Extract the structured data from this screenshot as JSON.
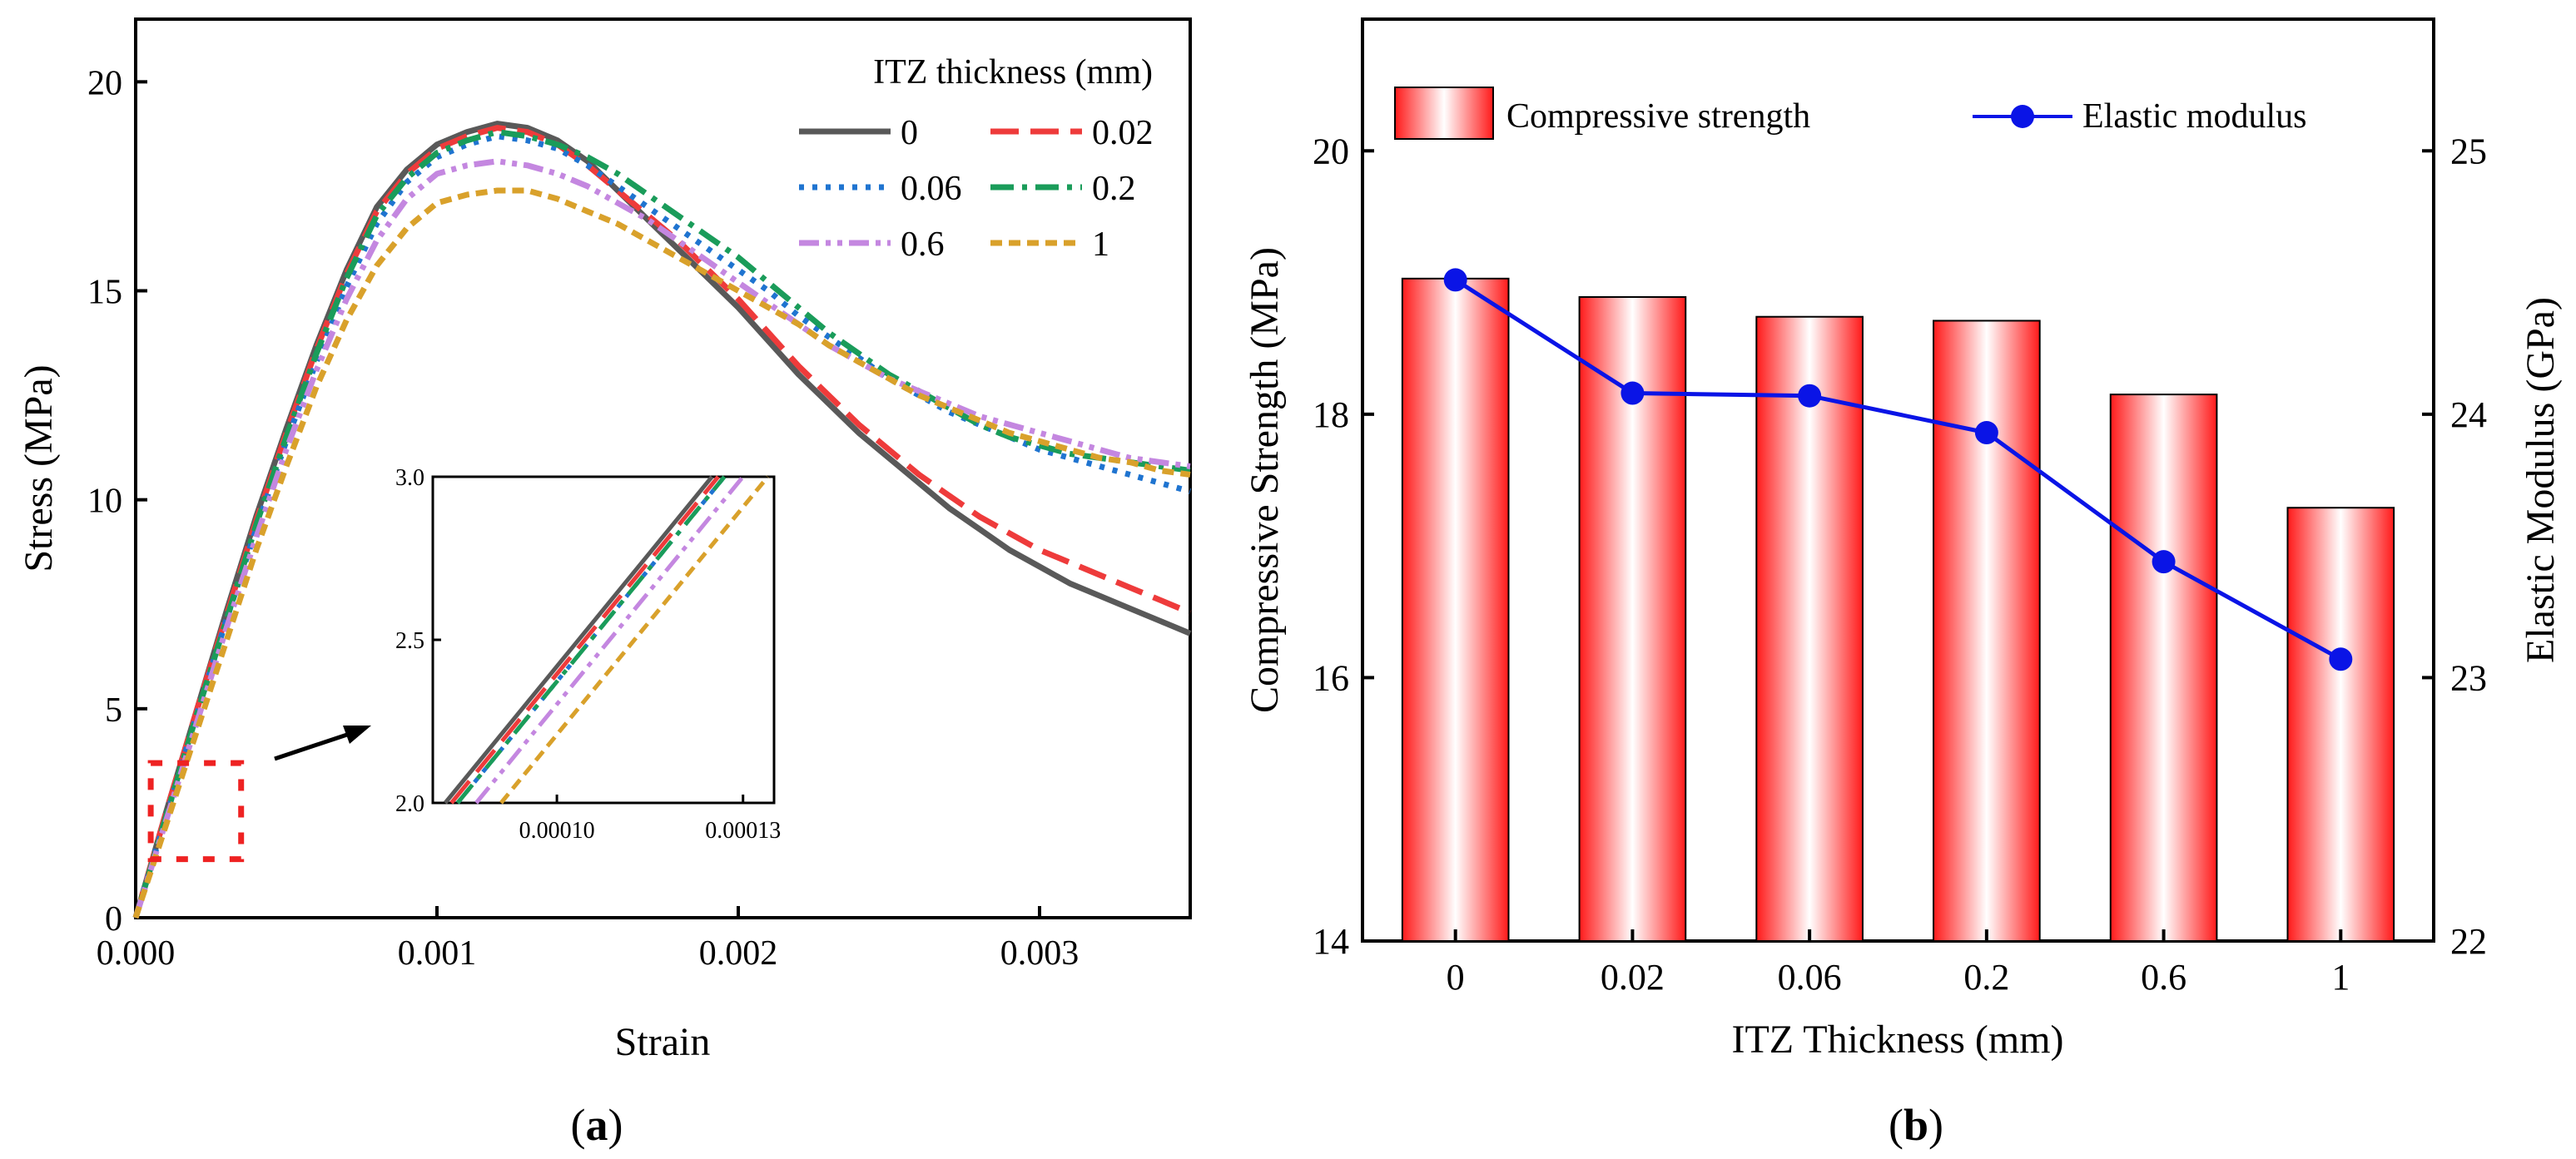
{
  "chart_data": [
    {
      "id": "a",
      "type": "line",
      "panel_label": {
        "open": "(",
        "letter": "a",
        "close": ")"
      },
      "title": "",
      "xlabel": "Strain",
      "ylabel": "Stress (MPa)",
      "xlim": [
        0,
        0.0035
      ],
      "ylim": [
        0,
        21.5
      ],
      "xticks": [
        0,
        0.001,
        0.002,
        0.003
      ],
      "xtick_labels": [
        "0.000",
        "0.001",
        "0.002",
        "0.003"
      ],
      "yticks": [
        0,
        5,
        10,
        15,
        20
      ],
      "ytick_labels": [
        "0",
        "5",
        "10",
        "15",
        "20"
      ],
      "legend_title": "ITZ thickness (mm)",
      "legend_position": "top-right",
      "series": [
        {
          "name": "0",
          "color": "#595959",
          "dash": "solid",
          "x": [
            0,
            0.0001,
            0.0002,
            0.0003,
            0.0004,
            0.0005,
            0.0006,
            0.0007,
            0.0008,
            0.0009,
            0.001,
            0.0011,
            0.0012,
            0.0013,
            0.0014,
            0.0015,
            0.0016,
            0.0017,
            0.0018,
            0.0019,
            0.002,
            0.0021,
            0.0022,
            0.0023,
            0.0024,
            0.0025,
            0.0026,
            0.0027,
            0.0028,
            0.0029,
            0.003,
            0.0031,
            0.0032,
            0.0033,
            0.0034,
            0.0035
          ],
          "y": [
            0,
            2.5,
            4.9,
            7.3,
            9.6,
            11.7,
            13.7,
            15.5,
            17.0,
            17.9,
            18.5,
            18.8,
            19.0,
            18.9,
            18.6,
            18.1,
            17.4,
            16.7,
            16.0,
            15.3,
            14.6,
            13.8,
            13.0,
            12.3,
            11.6,
            11.0,
            10.4,
            9.8,
            9.3,
            8.8,
            8.4,
            8.0,
            7.7,
            7.4,
            7.1,
            6.8
          ]
        },
        {
          "name": "0.02",
          "color": "#ee3b3b",
          "dash": "long-dash",
          "x": [
            0,
            0.0001,
            0.0002,
            0.0003,
            0.0004,
            0.0005,
            0.0006,
            0.0007,
            0.0008,
            0.0009,
            0.001,
            0.0011,
            0.0012,
            0.0013,
            0.0014,
            0.0015,
            0.0016,
            0.0017,
            0.0018,
            0.0019,
            0.002,
            0.0021,
            0.0022,
            0.0023,
            0.0024,
            0.0025,
            0.0026,
            0.0027,
            0.0028,
            0.0029,
            0.003,
            0.0031,
            0.0032,
            0.0033,
            0.0034,
            0.0035
          ],
          "y": [
            0,
            2.5,
            4.9,
            7.2,
            9.5,
            11.6,
            13.6,
            15.4,
            16.9,
            17.8,
            18.4,
            18.7,
            18.9,
            18.8,
            18.5,
            18.0,
            17.4,
            16.8,
            16.2,
            15.5,
            14.8,
            14.0,
            13.2,
            12.5,
            11.8,
            11.2,
            10.6,
            10.1,
            9.6,
            9.2,
            8.8,
            8.5,
            8.2,
            7.9,
            7.6,
            7.3
          ]
        },
        {
          "name": "0.06",
          "color": "#1f74d0",
          "dash": "dot",
          "x": [
            0,
            0.0001,
            0.0002,
            0.0003,
            0.0004,
            0.0005,
            0.0006,
            0.0007,
            0.0008,
            0.0009,
            0.001,
            0.0011,
            0.0012,
            0.0013,
            0.0014,
            0.0015,
            0.0016,
            0.0017,
            0.0018,
            0.0019,
            0.002,
            0.0021,
            0.0022,
            0.0023,
            0.0024,
            0.0025,
            0.0026,
            0.0027,
            0.0028,
            0.0029,
            0.003,
            0.0031,
            0.0032,
            0.0033,
            0.0034,
            0.0035
          ],
          "y": [
            0,
            2.4,
            4.8,
            7.1,
            9.3,
            11.4,
            13.3,
            15.1,
            16.6,
            17.6,
            18.2,
            18.5,
            18.7,
            18.6,
            18.4,
            18.0,
            17.5,
            17.0,
            16.5,
            16.0,
            15.5,
            15.0,
            14.4,
            13.9,
            13.4,
            12.9,
            12.5,
            12.1,
            11.8,
            11.5,
            11.2,
            11.0,
            10.8,
            10.6,
            10.4,
            10.2
          ]
        },
        {
          "name": "0.2",
          "color": "#1a9c5a",
          "dash": "dash-dot",
          "x": [
            0,
            0.0001,
            0.0002,
            0.0003,
            0.0004,
            0.0005,
            0.0006,
            0.0007,
            0.0008,
            0.0009,
            0.001,
            0.0011,
            0.0012,
            0.0013,
            0.0014,
            0.0015,
            0.0016,
            0.0017,
            0.0018,
            0.0019,
            0.002,
            0.0021,
            0.0022,
            0.0023,
            0.0024,
            0.0025,
            0.0026,
            0.0027,
            0.0028,
            0.0029,
            0.003,
            0.0031,
            0.0032,
            0.0033,
            0.0034,
            0.0035
          ],
          "y": [
            0,
            2.4,
            4.8,
            7.1,
            9.4,
            11.5,
            13.5,
            15.3,
            16.8,
            17.7,
            18.3,
            18.6,
            18.8,
            18.7,
            18.5,
            18.2,
            17.8,
            17.3,
            16.8,
            16.3,
            15.8,
            15.2,
            14.6,
            14.0,
            13.5,
            13.0,
            12.6,
            12.2,
            11.8,
            11.5,
            11.3,
            11.1,
            11.0,
            10.9,
            10.8,
            10.7
          ]
        },
        {
          "name": "0.6",
          "color": "#c487e0",
          "dash": "dash-dot-dot",
          "x": [
            0,
            0.0001,
            0.0002,
            0.0003,
            0.0004,
            0.0005,
            0.0006,
            0.0007,
            0.0008,
            0.0009,
            0.001,
            0.0011,
            0.0012,
            0.0013,
            0.0014,
            0.0015,
            0.0016,
            0.0017,
            0.0018,
            0.0019,
            0.002,
            0.0021,
            0.0022,
            0.0023,
            0.0024,
            0.0025,
            0.0026,
            0.0027,
            0.0028,
            0.0029,
            0.003,
            0.0031,
            0.0032,
            0.0033,
            0.0034,
            0.0035
          ],
          "y": [
            0,
            2.3,
            4.6,
            6.9,
            9.1,
            11.2,
            13.1,
            14.8,
            16.2,
            17.2,
            17.8,
            18.0,
            18.1,
            18.0,
            17.8,
            17.5,
            17.1,
            16.7,
            16.2,
            15.7,
            15.2,
            14.7,
            14.2,
            13.7,
            13.3,
            12.9,
            12.6,
            12.3,
            12.0,
            11.8,
            11.6,
            11.4,
            11.2,
            11.0,
            10.9,
            10.8
          ]
        },
        {
          "name": "1",
          "color": "#d9a12b",
          "dash": "short-dash",
          "x": [
            0,
            0.0001,
            0.0002,
            0.0003,
            0.0004,
            0.0005,
            0.0006,
            0.0007,
            0.0008,
            0.0009,
            0.001,
            0.0011,
            0.0012,
            0.0013,
            0.0014,
            0.0015,
            0.0016,
            0.0017,
            0.0018,
            0.0019,
            0.002,
            0.0021,
            0.0022,
            0.0023,
            0.0024,
            0.0025,
            0.0026,
            0.0027,
            0.0028,
            0.0029,
            0.003,
            0.0031,
            0.0032,
            0.0033,
            0.0034,
            0.0035
          ],
          "y": [
            0,
            2.2,
            4.4,
            6.6,
            8.8,
            10.8,
            12.7,
            14.3,
            15.6,
            16.5,
            17.1,
            17.3,
            17.4,
            17.4,
            17.2,
            16.9,
            16.6,
            16.2,
            15.8,
            15.4,
            15.0,
            14.6,
            14.2,
            13.7,
            13.3,
            12.9,
            12.5,
            12.2,
            11.9,
            11.6,
            11.4,
            11.2,
            11.0,
            10.9,
            10.7,
            10.6
          ]
        }
      ],
      "zoom_box": {
        "xlim": [
          5e-05,
          0.00035
        ],
        "ylim": [
          1.4,
          3.7
        ]
      },
      "inset": {
        "xlim": [
          8e-05,
          0.000135
        ],
        "ylim": [
          2.0,
          3.0
        ],
        "xticks": [
          0.0001,
          0.00013
        ],
        "xtick_labels": [
          "0.00010",
          "0.00013"
        ],
        "yticks": [
          2.0,
          2.5,
          3.0
        ],
        "ytick_labels": [
          "2.0",
          "2.5",
          "3.0"
        ],
        "series": [
          {
            "name": "0",
            "x": [
              8.2e-05,
              0.000125
            ],
            "y": [
              2.0,
              3.0
            ]
          },
          {
            "name": "0.02",
            "x": [
              8.3e-05,
              0.000126
            ],
            "y": [
              2.0,
              3.0
            ]
          },
          {
            "name": "0.06",
            "x": [
              8.4e-05,
              0.000127
            ],
            "y": [
              2.0,
              3.0
            ]
          },
          {
            "name": "0.2",
            "x": [
              8.4e-05,
              0.000127
            ],
            "y": [
              2.0,
              3.0
            ]
          },
          {
            "name": "0.6",
            "x": [
              8.7e-05,
              0.00013
            ],
            "y": [
              2.0,
              3.0
            ]
          },
          {
            "name": "1",
            "x": [
              9.1e-05,
              0.000134
            ],
            "y": [
              2.0,
              3.0
            ]
          }
        ]
      }
    },
    {
      "id": "b",
      "type": "bar",
      "panel_label": {
        "open": "(",
        "letter": "b",
        "close": ")"
      },
      "title": "",
      "categories": [
        "0",
        "0.02",
        "0.06",
        "0.2",
        "0.6",
        "1"
      ],
      "xlabel": "ITZ Thickness (mm)",
      "ylabel": "Compressive Strength (MPa)",
      "y2label": "Elastic Modulus (GPa)",
      "ylim": [
        14,
        21
      ],
      "yticks": [
        14,
        16,
        18,
        20
      ],
      "ytick_labels": [
        "14",
        "16",
        "18",
        "20"
      ],
      "y2lim": [
        22,
        25.5
      ],
      "y2ticks": [
        22,
        23,
        24,
        25
      ],
      "y2tick_labels": [
        "22",
        "23",
        "24",
        "25"
      ],
      "legend_position": "top",
      "series": [
        {
          "name": "Compressive strength",
          "kind": "bar",
          "axis": "left",
          "color": "#ff2a2a",
          "values": [
            19.03,
            18.89,
            18.74,
            18.71,
            18.15,
            17.29
          ]
        },
        {
          "name": "Elastic modulus",
          "kind": "line",
          "axis": "right",
          "color": "#0a14e6",
          "values": [
            24.51,
            24.08,
            24.07,
            23.93,
            23.44,
            23.07
          ]
        }
      ]
    }
  ]
}
